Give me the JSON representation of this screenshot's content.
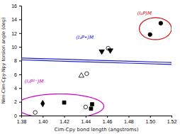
{
  "chart_data": {
    "type": "scatter",
    "xlabel": "Cim-Cpy bond length (angstroms)",
    "ylabel": "Nim-Cim-Cpy-Npy torsion angle (deg)",
    "xlim": [
      1.38,
      1.52
    ],
    "ylim": [
      0,
      16
    ],
    "xticks": [
      1.38,
      {
        "value": 1.4,
        "label": "1.40"
      },
      1.42,
      1.44,
      1.46,
      1.48,
      {
        "value": 1.5,
        "label": "1.50"
      },
      1.52
    ],
    "yticks": [
      0,
      2,
      4,
      6,
      8,
      10,
      12,
      14,
      16
    ],
    "series": [
      {
        "name": "(I₂P²⁻)M",
        "color": "#cc00cc",
        "label_x": 1.383,
        "label_y": 4.7,
        "ellipse": {
          "cx": 1.416,
          "cy": 1.35,
          "width": 0.082,
          "height": 3.6,
          "angle": 0
        },
        "x": [
          1.393,
          1.4,
          1.42,
          1.44,
          1.445,
          1.446
        ],
        "values": [
          0.45,
          1.75,
          1.9,
          1.25,
          1.0,
          1.65
        ],
        "marker": [
          "circle-open",
          "diamond",
          "square",
          "circle-open",
          "square",
          "square"
        ]
      },
      {
        "name": "(I₂P•)M",
        "color": "#2222cc",
        "label_x": 1.431,
        "label_y": 11.1,
        "ellipse": {
          "cx": 1.453,
          "cy": 7.9,
          "width": 0.058,
          "height": 5.5,
          "angle": 12
        },
        "x": [
          1.436,
          1.441,
          1.455,
          1.461,
          1.463
        ],
        "values": [
          5.8,
          6.1,
          9.35,
          9.8,
          9.5
        ],
        "marker": [
          "triangle-up-open",
          "circle-open",
          "triangle-down",
          "circle-open",
          "triangle-down"
        ]
      },
      {
        "name": "(I₂P)M",
        "color": "#cc1111",
        "label_x": 1.488,
        "label_y": 14.7,
        "ellipse": {
          "cx": 1.505,
          "cy": 12.65,
          "width": 0.03,
          "height": 3.2,
          "angle": 0
        },
        "x": [
          1.5,
          1.51
        ],
        "values": [
          11.8,
          13.45
        ],
        "marker": [
          "circle",
          "circle"
        ]
      }
    ]
  }
}
